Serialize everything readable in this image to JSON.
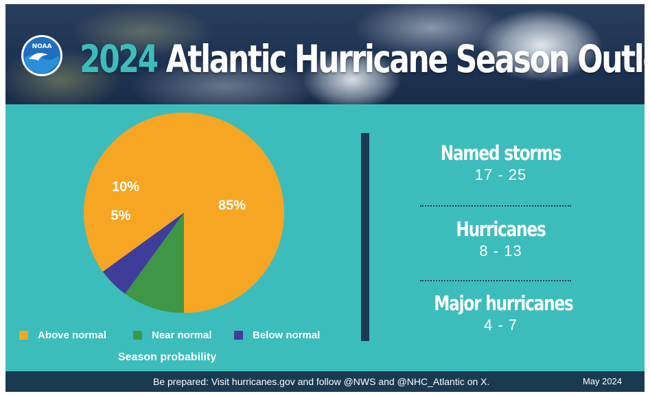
{
  "header": {
    "logo_text": "NOAA",
    "title_year": "2024",
    "title_rest": " Atlantic Hurricane Season Outlook"
  },
  "chart_data": {
    "type": "pie",
    "categories": [
      "Above normal",
      "Near normal",
      "Below normal"
    ],
    "values": [
      85,
      10,
      5
    ],
    "value_labels": [
      "85%",
      "10%",
      "5%"
    ],
    "colors": [
      "#f6a623",
      "#3f9647",
      "#3e3e9a"
    ],
    "xlabel": "Season probability",
    "legend_position": "bottom"
  },
  "stats": [
    {
      "label": "Named storms",
      "value": "17 - 25"
    },
    {
      "label": "Hurricanes",
      "value": "8 - 13"
    },
    {
      "label": "Major hurricanes",
      "value": "4 - 7"
    }
  ],
  "footer": {
    "message": "Be prepared: Visit hurricanes.gov and follow @NWS and @NHC_Atlantic on X.",
    "date": "May 2024"
  },
  "colors": {
    "panel": "#3cbdbb",
    "dark": "#1a3a52",
    "title_year": "#3cbdbb"
  }
}
